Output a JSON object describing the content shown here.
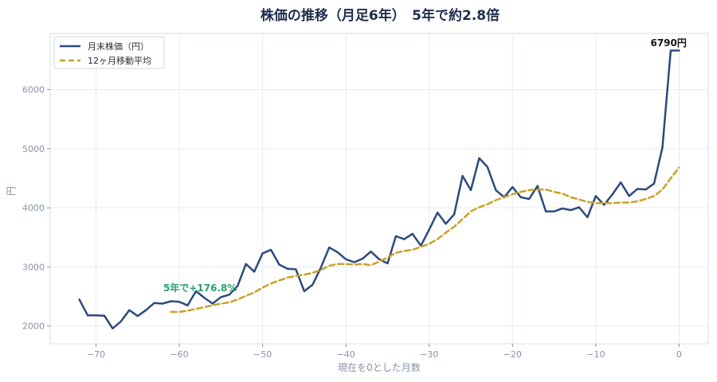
{
  "chart_data": {
    "type": "line",
    "title": "株価の推移（月足6年）　5年で約2.8倍",
    "xlabel": "現在を0とした月数",
    "ylabel": "円",
    "xlim": [
      -75.5,
      3.5
    ],
    "ylim": [
      1700,
      6950
    ],
    "xticks": [
      -70,
      -60,
      -50,
      -40,
      -30,
      -20,
      -10,
      0
    ],
    "yticks": [
      2000,
      3000,
      4000,
      5000,
      6000
    ],
    "grid": true,
    "legend_position": "top-left",
    "series": [
      {
        "name": "月末株価（円）",
        "color": "#2c4a7e",
        "style": "solid",
        "x_start": -72,
        "values": [
          2450,
          2180,
          2180,
          2175,
          1960,
          2080,
          2270,
          2170,
          2270,
          2390,
          2380,
          2420,
          2410,
          2350,
          2590,
          2480,
          2380,
          2490,
          2530,
          2680,
          3050,
          2920,
          3230,
          3290,
          3040,
          2970,
          2960,
          2590,
          2700,
          2990,
          3330,
          3250,
          3130,
          3080,
          3140,
          3260,
          3130,
          3060,
          3520,
          3470,
          3560,
          3360,
          3630,
          3920,
          3730,
          3890,
          4540,
          4300,
          4840,
          4690,
          4300,
          4180,
          4350,
          4180,
          4150,
          4370,
          3940,
          3940,
          3990,
          3960,
          4010,
          3840,
          4200,
          4050,
          4230,
          4430,
          4200,
          4320,
          4310,
          4410,
          5020,
          6660,
          6660
        ]
      },
      {
        "name": "12ヶ月移動平均",
        "color": "#c9a227",
        "style": "dashed",
        "x_start": -61,
        "values": [
          2240,
          2240,
          2260,
          2290,
          2320,
          2350,
          2380,
          2400,
          2450,
          2510,
          2570,
          2650,
          2720,
          2770,
          2820,
          2850,
          2870,
          2900,
          2950,
          3020,
          3050,
          3050,
          3040,
          3050,
          3030,
          3090,
          3160,
          3240,
          3270,
          3290,
          3340,
          3390,
          3470,
          3580,
          3680,
          3810,
          3940,
          4010,
          4060,
          4130,
          4180,
          4230,
          4270,
          4300,
          4310,
          4310,
          4270,
          4240,
          4180,
          4140,
          4100,
          4080,
          4080,
          4080,
          4090,
          4090,
          4110,
          4150,
          4200,
          4310,
          4500,
          4680
        ]
      }
    ],
    "annotations": [
      {
        "text": "6790円",
        "x": -0.5,
        "y": 6790
      },
      {
        "text": "5年で+176.8%",
        "x": -57.5,
        "y": 2560
      }
    ]
  }
}
